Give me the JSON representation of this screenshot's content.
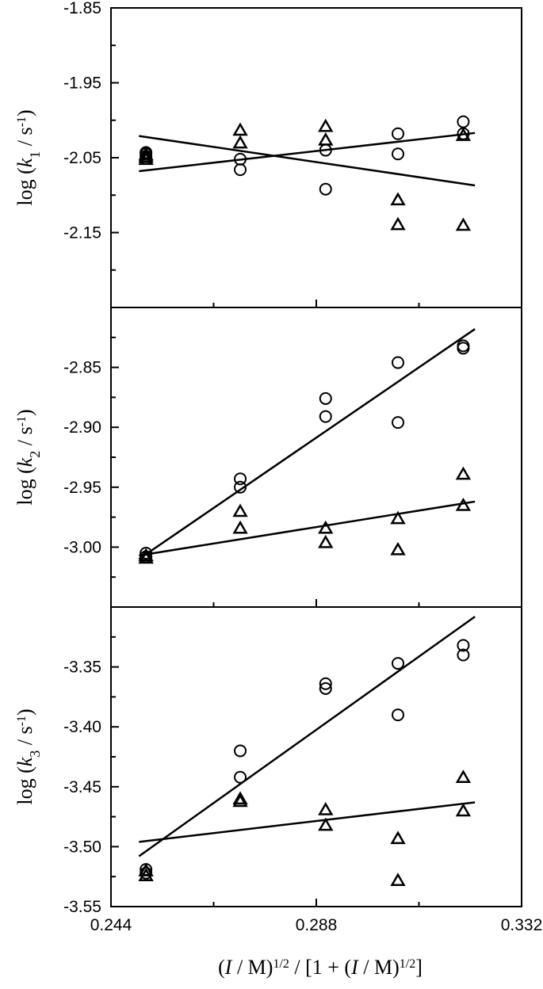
{
  "chart_data": {
    "shared_x": {
      "label_parts": [
        "(",
        "I",
        " / M)",
        "1/2",
        " / [1 + (",
        "I",
        " / M)",
        "1/2",
        "]"
      ],
      "xlim": [
        0.244,
        0.332
      ],
      "major_ticks": [
        0.244,
        0.288,
        0.332
      ],
      "tick_labels": [
        "0.244",
        "0.288",
        "0.332"
      ],
      "minor_ticks": [
        0.266,
        0.31
      ]
    },
    "panels": [
      {
        "type": "scatter",
        "ylabel_parts": [
          "log (",
          "k",
          "1",
          " / s",
          "-1",
          ")"
        ],
        "ylim": [
          -2.25,
          -1.85
        ],
        "major_ticks": [
          -1.85,
          -1.95,
          -2.05,
          -2.15
        ],
        "tick_labels": [
          "-1.85",
          "-1.95",
          "-2.05",
          "-2.15"
        ],
        "minor_ticks": [
          -1.9,
          -2.0,
          -2.1,
          -2.2
        ],
        "series": [
          {
            "marker": "circle",
            "points": [
              [
                0.2515,
                -2.043
              ],
              [
                0.2515,
                -2.045
              ],
              [
                0.2515,
                -2.048
              ],
              [
                0.2515,
                -2.051
              ],
              [
                0.2717,
                -2.052
              ],
              [
                0.2717,
                -2.066
              ],
              [
                0.29,
                -2.04
              ],
              [
                0.29,
                -2.092
              ],
              [
                0.3055,
                -2.018
              ],
              [
                0.3055,
                -2.045
              ],
              [
                0.3195,
                -2.002
              ],
              [
                0.3195,
                -2.018
              ]
            ],
            "fit": [
              [
                0.25,
                -2.068
              ],
              [
                0.322,
                -2.017
              ]
            ]
          },
          {
            "marker": "triangle",
            "points": [
              [
                0.2515,
                -2.046
              ],
              [
                0.2515,
                -2.049
              ],
              [
                0.2515,
                -2.052
              ],
              [
                0.2717,
                -2.013
              ],
              [
                0.2717,
                -2.03
              ],
              [
                0.29,
                -2.008
              ],
              [
                0.29,
                -2.026
              ],
              [
                0.3055,
                -2.106
              ],
              [
                0.3055,
                -2.139
              ],
              [
                0.3195,
                -2.02
              ],
              [
                0.3195,
                -2.14
              ]
            ],
            "fit": [
              [
                0.25,
                -2.021
              ],
              [
                0.322,
                -2.087
              ]
            ]
          }
        ]
      },
      {
        "type": "scatter",
        "ylabel_parts": [
          "log (",
          "k",
          "2",
          " / s",
          "-1",
          ")"
        ],
        "ylim": [
          -3.05,
          -2.8
        ],
        "major_ticks": [
          -2.85,
          -2.9,
          -2.95,
          -3.0
        ],
        "tick_labels": [
          "-2.85",
          "-2.90",
          "-2.95",
          "-3.00"
        ],
        "minor_ticks": [
          -2.825,
          -2.875,
          -2.925,
          -2.975,
          -3.025
        ],
        "series": [
          {
            "marker": "circle",
            "points": [
              [
                0.2515,
                -3.005
              ],
              [
                0.2515,
                -3.008
              ],
              [
                0.2717,
                -2.943
              ],
              [
                0.2717,
                -2.95
              ],
              [
                0.29,
                -2.876
              ],
              [
                0.29,
                -2.891
              ],
              [
                0.3055,
                -2.846
              ],
              [
                0.3055,
                -2.896
              ],
              [
                0.3195,
                -2.832
              ],
              [
                0.3195,
                -2.834
              ]
            ],
            "fit": [
              [
                0.25,
                -3.01
              ],
              [
                0.322,
                -2.818
              ]
            ]
          },
          {
            "marker": "triangle",
            "points": [
              [
                0.2515,
                -3.007
              ],
              [
                0.2515,
                -3.009
              ],
              [
                0.2717,
                -2.97
              ],
              [
                0.2717,
                -2.984
              ],
              [
                0.29,
                -2.984
              ],
              [
                0.29,
                -2.996
              ],
              [
                0.3055,
                -2.976
              ],
              [
                0.3055,
                -3.002
              ],
              [
                0.3195,
                -2.939
              ],
              [
                0.3195,
                -2.965
              ]
            ],
            "fit": [
              [
                0.25,
                -3.007
              ],
              [
                0.322,
                -2.962
              ]
            ]
          }
        ]
      },
      {
        "type": "scatter",
        "ylabel_parts": [
          "log (",
          "k",
          "3",
          " / s",
          "-1",
          ")"
        ],
        "ylim": [
          -3.55,
          -3.3
        ],
        "major_ticks": [
          -3.35,
          -3.4,
          -3.45,
          -3.5,
          -3.55
        ],
        "tick_labels": [
          "-3.35",
          "-3.40",
          "-3.45",
          "-3.50",
          "-3.55"
        ],
        "minor_ticks": [
          -3.325,
          -3.375,
          -3.425,
          -3.475,
          -3.525
        ],
        "series": [
          {
            "marker": "circle",
            "points": [
              [
                0.2515,
                -3.519
              ],
              [
                0.2515,
                -3.522
              ],
              [
                0.2717,
                -3.42
              ],
              [
                0.2717,
                -3.442
              ],
              [
                0.29,
                -3.364
              ],
              [
                0.29,
                -3.368
              ],
              [
                0.3055,
                -3.347
              ],
              [
                0.3055,
                -3.39
              ],
              [
                0.3195,
                -3.332
              ],
              [
                0.3195,
                -3.34
              ]
            ],
            "fit": [
              [
                0.25,
                -3.508
              ],
              [
                0.322,
                -3.308
              ]
            ]
          },
          {
            "marker": "triangle",
            "points": [
              [
                0.2515,
                -3.52
              ],
              [
                0.2515,
                -3.524
              ],
              [
                0.2717,
                -3.46
              ],
              [
                0.2717,
                -3.462
              ],
              [
                0.29,
                -3.469
              ],
              [
                0.29,
                -3.482
              ],
              [
                0.3055,
                -3.493
              ],
              [
                0.3055,
                -3.528
              ],
              [
                0.3195,
                -3.442
              ],
              [
                0.3195,
                -3.47
              ]
            ],
            "fit": [
              [
                0.25,
                -3.496
              ],
              [
                0.322,
                -3.463
              ]
            ]
          }
        ]
      }
    ]
  }
}
